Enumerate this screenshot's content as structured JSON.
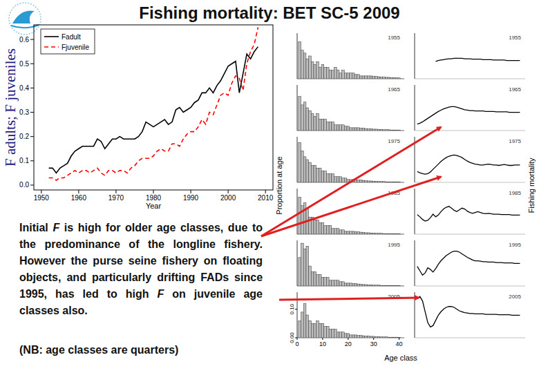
{
  "chart_data": [
    {
      "type": "line",
      "title": "Fishing mortality: BET SC-5 2009",
      "xlabel": "Year",
      "ylabel": "F adults; F juveniles",
      "x": [
        1952,
        1953,
        1954,
        1955,
        1956,
        1957,
        1958,
        1959,
        1960,
        1961,
        1962,
        1963,
        1964,
        1965,
        1966,
        1967,
        1968,
        1969,
        1970,
        1971,
        1972,
        1973,
        1974,
        1975,
        1976,
        1977,
        1978,
        1979,
        1980,
        1981,
        1982,
        1983,
        1984,
        1985,
        1986,
        1987,
        1988,
        1989,
        1990,
        1991,
        1992,
        1993,
        1994,
        1995,
        1996,
        1997,
        1998,
        1999,
        2000,
        2001,
        2002,
        2003,
        2004,
        2005,
        2006,
        2007,
        2008
      ],
      "series": [
        {
          "name": "Fadult",
          "color": "#000000",
          "line_style": "solid",
          "values": [
            0.07,
            0.07,
            0.05,
            0.07,
            0.08,
            0.09,
            0.12,
            0.14,
            0.15,
            0.16,
            0.16,
            0.16,
            0.16,
            0.19,
            0.18,
            0.15,
            0.17,
            0.19,
            0.19,
            0.2,
            0.19,
            0.19,
            0.19,
            0.19,
            0.2,
            0.22,
            0.26,
            0.25,
            0.24,
            0.25,
            0.26,
            0.27,
            0.25,
            0.26,
            0.31,
            0.32,
            0.3,
            0.31,
            0.32,
            0.34,
            0.35,
            0.38,
            0.38,
            0.4,
            0.38,
            0.41,
            0.43,
            0.46,
            0.49,
            0.5,
            0.51,
            0.38,
            0.46,
            0.54,
            0.52,
            0.55,
            0.57
          ]
        },
        {
          "name": "Fjuvenile",
          "color": "#ff0000",
          "line_style": "dashed",
          "values": [
            0.03,
            0.03,
            0.02,
            0.03,
            0.03,
            0.04,
            0.05,
            0.06,
            0.05,
            0.06,
            0.06,
            0.05,
            0.06,
            0.07,
            0.05,
            0.04,
            0.06,
            0.06,
            0.05,
            0.06,
            0.06,
            0.05,
            0.07,
            0.08,
            0.1,
            0.11,
            0.11,
            0.11,
            0.12,
            0.14,
            0.15,
            0.14,
            0.14,
            0.17,
            0.17,
            0.16,
            0.19,
            0.21,
            0.22,
            0.22,
            0.24,
            0.27,
            0.25,
            0.3,
            0.29,
            0.33,
            0.37,
            0.38,
            0.37,
            0.42,
            0.45,
            0.44,
            0.39,
            0.5,
            0.55,
            0.58,
            0.65
          ]
        }
      ],
      "xlim": [
        1948,
        2012
      ],
      "xticks": [
        1950,
        1960,
        1970,
        1980,
        1990,
        2000,
        2010
      ],
      "ylim": [
        -0.02,
        0.66
      ],
      "yticks": [
        {
          "value": 0,
          "label": "0.0"
        },
        0.1,
        0.2,
        0.3,
        0.4,
        0.5,
        0.6
      ],
      "legend": "top-left",
      "annotations": [
        "Initial F is high for older age classes, due to the predominance of the longline fishery. However the purse seine fishery on floating objects, and particularly drifting FADs since 1995, has led to high F on juvenile age classes also.",
        "(NB: age classes are quarters)"
      ]
    },
    {
      "type": "bar",
      "title": "1955",
      "color": "#bdbdbd",
      "xlim": [
        0,
        42
      ],
      "ylim": [
        0,
        0.16
      ],
      "tick_labels": false,
      "x": [
        1,
        2,
        3,
        4,
        5,
        6,
        7,
        8,
        9,
        10,
        11,
        12,
        13,
        14,
        15,
        16,
        17,
        18,
        19,
        20,
        21,
        22,
        23,
        24,
        25,
        26,
        27,
        28,
        29,
        30,
        31,
        32,
        33,
        34,
        35,
        36,
        37,
        38,
        39,
        40
      ],
      "values": [
        0.13,
        0.1,
        0.09,
        0.07,
        0.08,
        0.06,
        0.05,
        0.06,
        0.04,
        0.05,
        0.04,
        0.04,
        0.03,
        0.03,
        0.04,
        0.03,
        0.02,
        0.03,
        0.02,
        0.02,
        0.02,
        0.02,
        0.015,
        0.015,
        0.01,
        0.01,
        0.01,
        0.01,
        0.01,
        0.008,
        0.008,
        0.007,
        0.006,
        0.006,
        0.005,
        0.005,
        0.004,
        0.004,
        0.003,
        0.003
      ]
    },
    {
      "type": "bar",
      "title": "1965",
      "color": "#bdbdbd",
      "xlim": [
        0,
        42
      ],
      "ylim": [
        0,
        0.16
      ],
      "tick_labels": false,
      "x": [
        1,
        2,
        3,
        4,
        5,
        6,
        7,
        8,
        9,
        10,
        11,
        12,
        13,
        14,
        15,
        16,
        17,
        18,
        19,
        20,
        21,
        22,
        23,
        24,
        25,
        26,
        27,
        28,
        29,
        30,
        31,
        32,
        33,
        34,
        35,
        36,
        37,
        38,
        39,
        40
      ],
      "values": [
        0.12,
        0.09,
        0.1,
        0.08,
        0.07,
        0.06,
        0.05,
        0.06,
        0.04,
        0.04,
        0.04,
        0.03,
        0.03,
        0.03,
        0.02,
        0.02,
        0.02,
        0.02,
        0.015,
        0.015,
        0.01,
        0.01,
        0.01,
        0.01,
        0.008,
        0.008,
        0.007,
        0.006,
        0.006,
        0.005,
        0.005,
        0.004,
        0.004,
        0.003,
        0.003,
        0.003,
        0.002,
        0.002,
        0.002,
        0.002
      ]
    },
    {
      "type": "bar",
      "title": "1975",
      "color": "#bdbdbd",
      "xlim": [
        0,
        42
      ],
      "ylim": [
        0,
        0.16
      ],
      "tick_labels": false,
      "x": [
        1,
        2,
        3,
        4,
        5,
        6,
        7,
        8,
        9,
        10,
        11,
        12,
        13,
        14,
        15,
        16,
        17,
        18,
        19,
        20,
        21,
        22,
        23,
        24,
        25,
        26,
        27,
        28,
        29,
        30,
        31,
        32,
        33,
        34,
        35,
        36,
        37,
        38,
        39,
        40
      ],
      "values": [
        0.14,
        0.11,
        0.09,
        0.08,
        0.07,
        0.06,
        0.06,
        0.05,
        0.05,
        0.04,
        0.04,
        0.03,
        0.03,
        0.03,
        0.02,
        0.02,
        0.02,
        0.015,
        0.015,
        0.01,
        0.01,
        0.01,
        0.01,
        0.008,
        0.008,
        0.007,
        0.006,
        0.005,
        0.005,
        0.004,
        0.004,
        0.003,
        0.003,
        0.003,
        0.002,
        0.002,
        0.002,
        0.002,
        0.001,
        0.001
      ]
    },
    {
      "type": "bar",
      "title": "1985",
      "ylabel": "Proportion at age",
      "color": "#bdbdbd",
      "xlim": [
        0,
        42
      ],
      "ylim": [
        0,
        0.16
      ],
      "tick_labels": false,
      "x": [
        1,
        2,
        3,
        4,
        5,
        6,
        7,
        8,
        9,
        10,
        11,
        12,
        13,
        14,
        15,
        16,
        17,
        18,
        19,
        20,
        21,
        22,
        23,
        24,
        25,
        26,
        27,
        28,
        29,
        30,
        31,
        32,
        33,
        34,
        35,
        36,
        37,
        38,
        39,
        40
      ],
      "values": [
        0.13,
        0.1,
        0.11,
        0.09,
        0.06,
        0.06,
        0.05,
        0.05,
        0.04,
        0.04,
        0.03,
        0.03,
        0.03,
        0.02,
        0.02,
        0.02,
        0.015,
        0.015,
        0.01,
        0.01,
        0.01,
        0.01,
        0.008,
        0.008,
        0.007,
        0.006,
        0.005,
        0.005,
        0.004,
        0.004,
        0.003,
        0.003,
        0.003,
        0.002,
        0.002,
        0.002,
        0.002,
        0.001,
        0.001,
        0.001
      ]
    },
    {
      "type": "bar",
      "title": "1995",
      "color": "#bdbdbd",
      "xlim": [
        0,
        42
      ],
      "ylim": [
        0,
        0.16
      ],
      "tick_labels": false,
      "x": [
        1,
        2,
        3,
        4,
        5,
        6,
        7,
        8,
        9,
        10,
        11,
        12,
        13,
        14,
        15,
        16,
        17,
        18,
        19,
        20,
        21,
        22,
        23,
        24,
        25,
        26,
        27,
        28,
        29,
        30,
        31,
        32,
        33,
        34,
        35,
        36,
        37,
        38,
        39,
        40
      ],
      "values": [
        0.1,
        0.15,
        0.13,
        0.14,
        0.07,
        0.05,
        0.05,
        0.04,
        0.04,
        0.03,
        0.03,
        0.03,
        0.02,
        0.02,
        0.02,
        0.02,
        0.015,
        0.015,
        0.01,
        0.01,
        0.01,
        0.008,
        0.008,
        0.007,
        0.006,
        0.005,
        0.005,
        0.004,
        0.004,
        0.003,
        0.003,
        0.003,
        0.002,
        0.002,
        0.002,
        0.002,
        0.001,
        0.001,
        0.001,
        0.001
      ]
    },
    {
      "type": "bar",
      "title": "2005",
      "color": "#bdbdbd",
      "xlim": [
        0,
        42
      ],
      "ylim": [
        0,
        0.16
      ],
      "xticks": [
        0,
        10,
        20,
        30,
        40
      ],
      "yticks": [
        {
          "value": 0,
          "label": "0.00"
        },
        {
          "value": 0.1,
          "label": "0.10"
        }
      ],
      "x": [
        1,
        2,
        3,
        4,
        5,
        6,
        7,
        8,
        9,
        10,
        11,
        12,
        13,
        14,
        15,
        16,
        17,
        18,
        19,
        20,
        21,
        22,
        23,
        24,
        25,
        26,
        27,
        28,
        29,
        30,
        31,
        32,
        33,
        34,
        35,
        36,
        37,
        38,
        39,
        40
      ],
      "values": [
        0.06,
        0.09,
        0.12,
        0.08,
        0.06,
        0.05,
        0.05,
        0.06,
        0.05,
        0.05,
        0.04,
        0.04,
        0.03,
        0.03,
        0.03,
        0.02,
        0.02,
        0.02,
        0.015,
        0.015,
        0.01,
        0.01,
        0.01,
        0.008,
        0.008,
        0.007,
        0.006,
        0.006,
        0.005,
        0.005,
        0.004,
        0.004,
        0.003,
        0.003,
        0.003,
        0.002,
        0.002,
        0.002,
        0.002,
        0.001
      ]
    },
    {
      "type": "line",
      "title": "1955",
      "color": "#000000",
      "xlim": [
        0,
        42
      ],
      "ylim": [
        0,
        1.05
      ],
      "tick_labels": false,
      "x": [
        1,
        2,
        3,
        4,
        5,
        6,
        7,
        8,
        9,
        10,
        11,
        12,
        13,
        14,
        15,
        16,
        17,
        18,
        19,
        20,
        21,
        22,
        23,
        24,
        25,
        26,
        27,
        28,
        29,
        30,
        31,
        32,
        33,
        34,
        35,
        36,
        37,
        38,
        39,
        40
      ],
      "values": [
        null,
        null,
        null,
        null,
        null,
        null,
        null,
        0.4,
        0.42,
        0.43,
        0.44,
        0.45,
        0.46,
        0.46,
        0.47,
        0.47,
        0.47,
        0.47,
        0.46,
        0.46,
        0.46,
        0.45,
        0.45,
        0.45,
        0.45,
        0.44,
        0.44,
        0.44,
        0.44,
        0.43,
        0.43,
        0.43,
        0.43,
        0.43,
        0.42,
        0.42,
        0.42,
        0.42,
        0.42,
        0.42
      ]
    },
    {
      "type": "line",
      "title": "1965",
      "color": "#000000",
      "xlim": [
        0,
        42
      ],
      "ylim": [
        0,
        1.05
      ],
      "tick_labels": false,
      "x": [
        1,
        2,
        3,
        4,
        5,
        6,
        7,
        8,
        9,
        10,
        11,
        12,
        13,
        14,
        15,
        16,
        17,
        18,
        19,
        20,
        21,
        22,
        23,
        24,
        25,
        26,
        27,
        28,
        29,
        30,
        31,
        32,
        33,
        34,
        35,
        36,
        37,
        38,
        39,
        40
      ],
      "values": [
        0.15,
        0.17,
        0.2,
        0.24,
        0.28,
        0.32,
        0.36,
        0.4,
        0.44,
        0.47,
        0.5,
        0.52,
        0.54,
        0.55,
        0.55,
        0.54,
        0.52,
        0.5,
        0.48,
        0.47,
        0.46,
        0.46,
        0.45,
        0.45,
        0.45,
        0.45,
        0.44,
        0.44,
        0.44,
        0.44,
        0.43,
        0.43,
        0.43,
        0.43,
        0.43,
        0.42,
        0.42,
        0.42,
        0.42,
        0.42
      ]
    },
    {
      "type": "line",
      "title": "1975",
      "color": "#000000",
      "xlim": [
        0,
        42
      ],
      "ylim": [
        0,
        1.05
      ],
      "tick_labels": false,
      "x": [
        1,
        2,
        3,
        4,
        5,
        6,
        7,
        8,
        9,
        10,
        11,
        12,
        13,
        14,
        15,
        16,
        17,
        18,
        19,
        20,
        21,
        22,
        23,
        24,
        25,
        26,
        27,
        28,
        29,
        30,
        31,
        32,
        33,
        34,
        35,
        36,
        37,
        38,
        39,
        40
      ],
      "values": [
        0.25,
        0.22,
        0.2,
        0.19,
        0.2,
        0.24,
        0.3,
        0.36,
        0.42,
        0.48,
        0.53,
        0.57,
        0.6,
        0.62,
        0.63,
        0.62,
        0.6,
        0.57,
        0.53,
        0.49,
        0.46,
        0.44,
        0.42,
        0.41,
        0.4,
        0.4,
        0.41,
        0.42,
        0.41,
        0.4,
        0.4,
        0.39,
        0.4,
        0.41,
        0.4,
        0.39,
        0.39,
        0.4,
        0.4,
        0.4
      ]
    },
    {
      "type": "line",
      "title": "1985",
      "ylabel": "Fishing mortality",
      "color": "#000000",
      "xlim": [
        0,
        42
      ],
      "ylim": [
        0,
        1.05
      ],
      "tick_labels": false,
      "x": [
        1,
        2,
        3,
        4,
        5,
        6,
        7,
        8,
        9,
        10,
        11,
        12,
        13,
        14,
        15,
        16,
        17,
        18,
        19,
        20,
        21,
        22,
        23,
        24,
        25,
        26,
        27,
        28,
        29,
        30,
        31,
        32,
        33,
        34,
        35,
        36,
        37,
        38,
        39,
        40
      ],
      "values": [
        0.45,
        0.4,
        0.34,
        0.3,
        0.32,
        0.38,
        0.46,
        0.4,
        0.44,
        0.52,
        0.58,
        0.62,
        0.64,
        0.6,
        0.55,
        0.52,
        0.56,
        0.6,
        0.58,
        0.53,
        0.5,
        0.48,
        0.5,
        0.52,
        0.5,
        0.48,
        0.47,
        0.48,
        0.47,
        0.46,
        0.46,
        0.46,
        0.45,
        0.45,
        0.45,
        0.45,
        0.44,
        0.44,
        0.44,
        0.44
      ]
    },
    {
      "type": "line",
      "title": "1995",
      "color": "#000000",
      "xlim": [
        0,
        42
      ],
      "ylim": [
        0,
        1.05
      ],
      "tick_labels": false,
      "x": [
        1,
        2,
        3,
        4,
        5,
        6,
        7,
        8,
        9,
        10,
        11,
        12,
        13,
        14,
        15,
        16,
        17,
        18,
        19,
        20,
        21,
        22,
        23,
        24,
        25,
        26,
        27,
        28,
        29,
        30,
        31,
        32,
        33,
        34,
        35,
        36,
        37,
        38,
        39,
        40
      ],
      "values": [
        0.45,
        0.35,
        0.25,
        0.3,
        0.42,
        0.38,
        0.32,
        0.4,
        0.5,
        0.58,
        0.64,
        0.7,
        0.74,
        0.78,
        0.8,
        0.8,
        0.78,
        0.74,
        0.7,
        0.66,
        0.63,
        0.6,
        0.58,
        0.58,
        0.57,
        0.56,
        0.56,
        0.55,
        0.55,
        0.55,
        0.54,
        0.54,
        0.54,
        0.53,
        0.53,
        0.53,
        0.53,
        0.52,
        0.52,
        0.52
      ]
    },
    {
      "type": "line",
      "title": "2005",
      "xlabel": "Age class",
      "color": "#000000",
      "xlim": [
        0,
        42
      ],
      "ylim": [
        0,
        1.05
      ],
      "tick_labels": false,
      "x": [
        1,
        2,
        3,
        4,
        5,
        6,
        7,
        8,
        9,
        10,
        11,
        12,
        13,
        14,
        15,
        16,
        17,
        18,
        19,
        20,
        21,
        22,
        23,
        24,
        25,
        26,
        27,
        28,
        29,
        30,
        31,
        32,
        33,
        34,
        35,
        36,
        37,
        38,
        39,
        40
      ],
      "values": [
        0.9,
        0.95,
        0.85,
        0.6,
        0.35,
        0.25,
        0.28,
        0.4,
        0.52,
        0.6,
        0.66,
        0.7,
        0.72,
        0.72,
        0.7,
        0.66,
        0.62,
        0.6,
        0.58,
        0.57,
        0.56,
        0.56,
        0.55,
        0.55,
        0.55,
        0.55,
        0.54,
        0.54,
        0.54,
        0.54,
        0.54,
        0.53,
        0.53,
        0.53,
        0.53,
        0.53,
        0.52,
        0.52,
        0.52,
        0.52
      ]
    }
  ]
}
